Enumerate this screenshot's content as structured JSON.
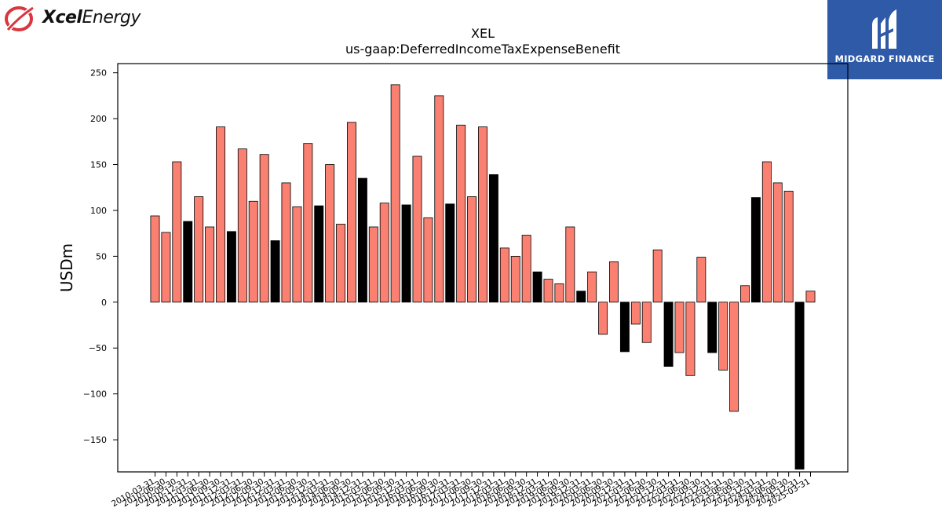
{
  "brand": {
    "left_logo_text_bold": "Xcel",
    "left_logo_text_rest": "Energy",
    "left_logo_mark": "xcel-swoosh-icon",
    "right_logo_text": "MIDGARD FINANCE",
    "right_logo_mark": "midgard-emblem-icon",
    "right_logo_bg": "#2e5aa8"
  },
  "chart_data": {
    "type": "bar",
    "title": "XEL",
    "subtitle": "us-gaap:DeferredIncomeTaxExpenseBenefit",
    "ylabel": "USDm",
    "xlabel": "",
    "ylim": [
      -185,
      260
    ],
    "yticks": [
      -150,
      -100,
      -50,
      0,
      50,
      100,
      150,
      200,
      250
    ],
    "grid": false,
    "colors": {
      "quarter": "#fa8072",
      "annual": "#000000",
      "edge": "#000000"
    },
    "categories": [
      "2010-03-31",
      "2010-06-30",
      "2010-09-30",
      "2010-12-31",
      "2011-03-31",
      "2011-06-30",
      "2011-09-30",
      "2011-12-31",
      "2012-03-31",
      "2012-06-30",
      "2012-09-30",
      "2012-12-31",
      "2013-03-31",
      "2013-06-30",
      "2013-09-30",
      "2013-12-31",
      "2014-03-31",
      "2014-06-30",
      "2014-09-30",
      "2014-12-31",
      "2015-03-31",
      "2015-06-30",
      "2015-09-30",
      "2015-12-31",
      "2016-03-31",
      "2016-06-30",
      "2016-09-30",
      "2016-12-31",
      "2017-03-31",
      "2017-06-30",
      "2017-09-30",
      "2017-12-31",
      "2018-03-31",
      "2018-06-30",
      "2018-09-30",
      "2018-12-31",
      "2019-03-31",
      "2019-06-30",
      "2019-09-30",
      "2019-12-31",
      "2020-03-31",
      "2020-06-30",
      "2020-09-30",
      "2020-12-31",
      "2021-03-31",
      "2021-06-30",
      "2021-09-30",
      "2021-12-31",
      "2022-03-31",
      "2022-06-30",
      "2022-09-30",
      "2022-12-31",
      "2023-03-31",
      "2023-06-30",
      "2023-09-30",
      "2023-12-31",
      "2024-03-31",
      "2024-06-30",
      "2024-09-30",
      "2024-12-31",
      "2025-03-31"
    ],
    "values": [
      94,
      76,
      153,
      88,
      115,
      82,
      191,
      77,
      167,
      110,
      161,
      67,
      130,
      104,
      173,
      105,
      150,
      85,
      196,
      135,
      82,
      108,
      237,
      106,
      159,
      92,
      225,
      107,
      193,
      115,
      191,
      139,
      59,
      50,
      73,
      33,
      25,
      20,
      82,
      12,
      33,
      -35,
      44,
      -54,
      -24,
      -44,
      57,
      -70,
      -55,
      -80,
      49,
      -55,
      -74,
      -119,
      18,
      114,
      153,
      130,
      121,
      -182,
      12
    ],
    "annual_flags": [
      0,
      0,
      0,
      1,
      0,
      0,
      0,
      1,
      0,
      0,
      0,
      1,
      0,
      0,
      0,
      1,
      0,
      0,
      0,
      1,
      0,
      0,
      0,
      1,
      0,
      0,
      0,
      1,
      0,
      0,
      0,
      1,
      0,
      0,
      0,
      1,
      0,
      0,
      0,
      1,
      0,
      0,
      0,
      1,
      0,
      0,
      0,
      1,
      0,
      0,
      0,
      1,
      0,
      0,
      0,
      1,
      0,
      0,
      0,
      1,
      0
    ]
  }
}
